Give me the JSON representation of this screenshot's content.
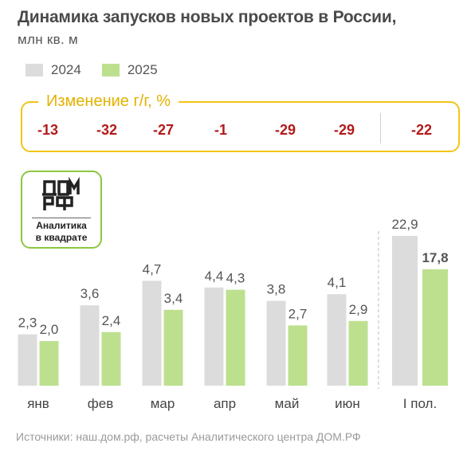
{
  "title": "Динамика запусков новых проектов в России,",
  "subtitle": "млн кв. м",
  "legend": [
    {
      "label": "2024",
      "color": "#dcdcdc"
    },
    {
      "label": "2025",
      "color": "#bde08f"
    }
  ],
  "yoy": {
    "title": "Изменение г/г, %",
    "values": [
      "-13",
      "-32",
      "-27",
      "-1",
      "-29",
      "-29",
      "-22"
    ]
  },
  "logo": {
    "caption_line1": "Аналитика",
    "caption_line2": "в квадрате"
  },
  "source": "Источники: наш.дом.рф, расчеты Аналитического центра ДОМ.РФ",
  "chart_data": {
    "type": "bar",
    "categories": [
      "янв",
      "фев",
      "мар",
      "апр",
      "май",
      "июн",
      "I пол."
    ],
    "series": [
      {
        "name": "2024",
        "values": [
          2.3,
          3.6,
          4.7,
          4.4,
          3.8,
          4.1,
          22.9
        ],
        "labels": [
          "2,3",
          "3,6",
          "4,7",
          "4,4",
          "3,8",
          "4,1",
          "22,9"
        ]
      },
      {
        "name": "2025",
        "values": [
          2.0,
          2.4,
          3.4,
          4.3,
          2.7,
          2.9,
          17.8
        ],
        "labels": [
          "2,0",
          "2,4",
          "3,4",
          "4,3",
          "2,7",
          "2,9",
          "17,8"
        ]
      }
    ],
    "title": "Динамика запусков новых проектов в России,",
    "ylabel": "млн кв. м",
    "colors": {
      "2024": "#dcdcdc",
      "2025": "#bde08f"
    },
    "highlighted_label": "17,8",
    "grid": false,
    "legend_position": "top-left"
  }
}
